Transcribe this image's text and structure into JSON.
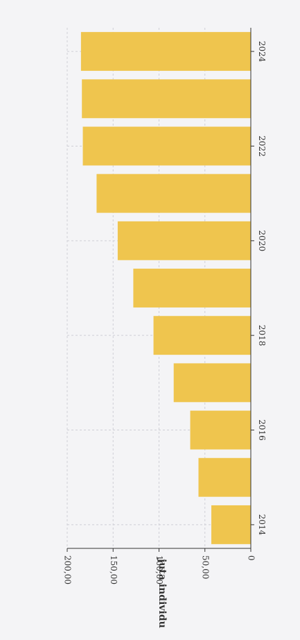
{
  "chart_data": {
    "type": "bar",
    "orientation": "rotated",
    "categories": [
      "2014",
      "2015",
      "2016",
      "2017",
      "2018",
      "2019",
      "2020",
      "2021",
      "2022",
      "2023",
      "2024"
    ],
    "values": [
      43,
      57,
      66,
      84,
      106,
      128,
      145,
      168,
      183,
      184,
      185
    ],
    "x_tick_labels": [
      "2014",
      "2016",
      "2018",
      "2020",
      "2022",
      "2024"
    ],
    "y_ticks": [
      0,
      50,
      100,
      150,
      200
    ],
    "y_tick_labels": [
      "0",
      "50,00",
      "100,00",
      "150,00",
      "200,00"
    ],
    "ylabel": "juta individu",
    "xlabel": "",
    "title": "",
    "ylim": [
      0,
      200
    ],
    "grid": true,
    "bar_color": "#efc54e",
    "grid_color": "#cfcfd6",
    "background": "#f4f4f6"
  }
}
